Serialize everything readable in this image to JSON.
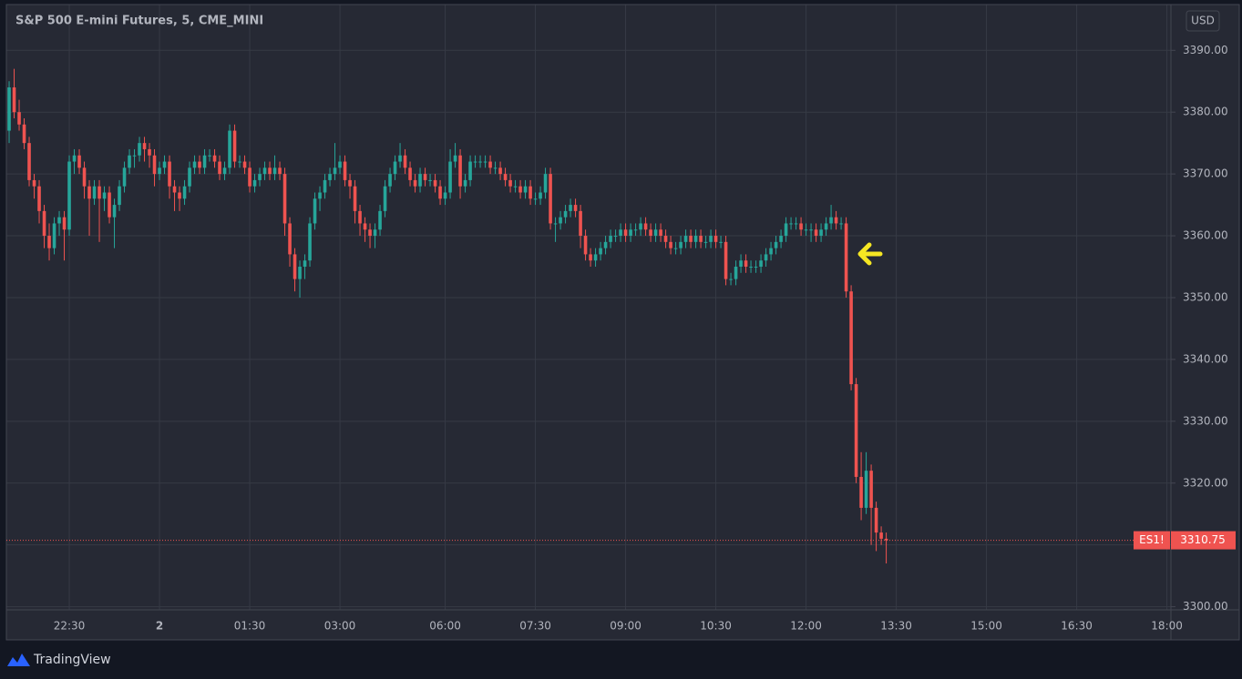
{
  "chart_data": {
    "type": "candlestick",
    "title": "S&P 500 E-mini Futures, 5, CME_MINI",
    "currency": "USD",
    "brand": "TradingView",
    "up_color": "#26a69a",
    "down_color": "#ef5350",
    "grid": true,
    "ylim": [
      3299.5,
      3397.4
    ],
    "yticks": [
      {
        "value": 3390,
        "label": "3390.00"
      },
      {
        "value": 3380,
        "label": "3380.00"
      },
      {
        "value": 3370,
        "label": "3370.00"
      },
      {
        "value": 3360,
        "label": "3360.00"
      },
      {
        "value": 3350,
        "label": "3350.00"
      },
      {
        "value": 3340,
        "label": "3340.00"
      },
      {
        "value": 3330,
        "label": "3330.00"
      },
      {
        "value": 3320,
        "label": "3320.00"
      },
      {
        "value": 3310,
        "label": "3310.00"
      },
      {
        "value": 3300,
        "label": "3300.00"
      }
    ],
    "xlim": [
      -0.55,
      231.8
    ],
    "xticks": [
      {
        "value": 12,
        "label": "22:30"
      },
      {
        "value": 30,
        "label": "2"
      },
      {
        "value": 48,
        "label": "01:30"
      },
      {
        "value": 66,
        "label": "03:00"
      },
      {
        "value": 87,
        "label": "06:00"
      },
      {
        "value": 105,
        "label": "07:30"
      },
      {
        "value": 123,
        "label": "09:00"
      },
      {
        "value": 141,
        "label": "10:30"
      },
      {
        "value": 159,
        "label": "12:00"
      },
      {
        "value": 177,
        "label": "13:30"
      },
      {
        "value": 195,
        "label": "15:00"
      },
      {
        "value": 213,
        "label": "16:30"
      },
      {
        "value": 231,
        "label": "18:00"
      }
    ],
    "last_price": {
      "label": "ES1!",
      "value": 3310.75
    },
    "candles": [
      [
        3377,
        3385,
        3375,
        3384
      ],
      [
        3384,
        3387,
        3379,
        3380
      ],
      [
        3380,
        3382,
        3377,
        3378
      ],
      [
        3378,
        3379,
        3374,
        3375
      ],
      [
        3375,
        3376,
        3368,
        3369
      ],
      [
        3369,
        3370,
        3366,
        3368
      ],
      [
        3368,
        3369,
        3362,
        3364
      ],
      [
        3364,
        3365,
        3358,
        3360
      ],
      [
        3360,
        3362,
        3356,
        3358
      ],
      [
        3358,
        3363,
        3357,
        3362
      ],
      [
        3362,
        3364,
        3360,
        3363
      ],
      [
        3363,
        3364,
        3356,
        3361
      ],
      [
        3361,
        3373,
        3360,
        3372
      ],
      [
        3372,
        3374,
        3370,
        3373
      ],
      [
        3373,
        3374,
        3370,
        3371
      ],
      [
        3371,
        3372,
        3366,
        3368
      ],
      [
        3368,
        3369,
        3360,
        3366
      ],
      [
        3366,
        3369,
        3365,
        3368
      ],
      [
        3368,
        3369,
        3359,
        3366
      ],
      [
        3366,
        3368,
        3364,
        3367
      ],
      [
        3367,
        3368,
        3362,
        3363
      ],
      [
        3363,
        3366,
        3358,
        3365
      ],
      [
        3365,
        3369,
        3364,
        3368
      ],
      [
        3368,
        3372,
        3367,
        3371
      ],
      [
        3371,
        3374,
        3370,
        3373
      ],
      [
        3373,
        3374,
        3371,
        3373
      ],
      [
        3373,
        3376,
        3372,
        3375
      ],
      [
        3375,
        3376,
        3372,
        3374
      ],
      [
        3374,
        3375,
        3371,
        3373
      ],
      [
        3373,
        3374,
        3368,
        3370
      ],
      [
        3370,
        3372,
        3369,
        3371
      ],
      [
        3371,
        3373,
        3370,
        3372
      ],
      [
        3372,
        3373,
        3366,
        3368
      ],
      [
        3368,
        3369,
        3364,
        3367
      ],
      [
        3367,
        3368,
        3364,
        3366
      ],
      [
        3366,
        3369,
        3365,
        3368
      ],
      [
        3368,
        3372,
        3367,
        3371
      ],
      [
        3371,
        3373,
        3370,
        3372
      ],
      [
        3372,
        3373,
        3370,
        3371
      ],
      [
        3371,
        3374,
        3370,
        3373
      ],
      [
        3373,
        3374,
        3372,
        3373
      ],
      [
        3373,
        3374,
        3371,
        3372
      ],
      [
        3372,
        3373,
        3369,
        3370
      ],
      [
        3370,
        3372,
        3369,
        3371
      ],
      [
        3371,
        3378,
        3370,
        3377
      ],
      [
        3377,
        3378,
        3371,
        3372
      ],
      [
        3372,
        3373,
        3371,
        3372
      ],
      [
        3372,
        3373,
        3370,
        3371
      ],
      [
        3371,
        3372,
        3367,
        3368
      ],
      [
        3368,
        3370,
        3367,
        3369
      ],
      [
        3369,
        3371,
        3368,
        3370
      ],
      [
        3370,
        3372,
        3369,
        3371
      ],
      [
        3371,
        3372,
        3369,
        3370
      ],
      [
        3370,
        3373,
        3369,
        3371
      ],
      [
        3371,
        3372,
        3369,
        3370
      ],
      [
        3370,
        3371,
        3360,
        3362
      ],
      [
        3362,
        3363,
        3355,
        3357
      ],
      [
        3357,
        3358,
        3351,
        3353
      ],
      [
        3353,
        3356,
        3350,
        3355
      ],
      [
        3355,
        3357,
        3353,
        3356
      ],
      [
        3356,
        3363,
        3355,
        3362
      ],
      [
        3362,
        3367,
        3361,
        3366
      ],
      [
        3366,
        3368,
        3364,
        3367
      ],
      [
        3367,
        3370,
        3366,
        3369
      ],
      [
        3369,
        3371,
        3368,
        3370
      ],
      [
        3370,
        3375,
        3369,
        3371
      ],
      [
        3371,
        3373,
        3370,
        3372
      ],
      [
        3372,
        3373,
        3368,
        3369
      ],
      [
        3369,
        3370,
        3366,
        3368
      ],
      [
        3368,
        3369,
        3362,
        3364
      ],
      [
        3364,
        3365,
        3360,
        3362
      ],
      [
        3362,
        3363,
        3359,
        3361
      ],
      [
        3361,
        3362,
        3358,
        3360
      ],
      [
        3360,
        3362,
        3358,
        3361
      ],
      [
        3361,
        3365,
        3360,
        3364
      ],
      [
        3364,
        3369,
        3363,
        3368
      ],
      [
        3368,
        3371,
        3367,
        3370
      ],
      [
        3370,
        3373,
        3369,
        3372
      ],
      [
        3372,
        3375,
        3371,
        3373
      ],
      [
        3373,
        3374,
        3370,
        3371
      ],
      [
        3371,
        3372,
        3368,
        3369
      ],
      [
        3369,
        3370,
        3367,
        3368
      ],
      [
        3368,
        3371,
        3367,
        3370
      ],
      [
        3370,
        3371,
        3368,
        3369
      ],
      [
        3369,
        3370,
        3368,
        3369
      ],
      [
        3369,
        3370,
        3367,
        3368
      ],
      [
        3368,
        3369,
        3365,
        3366
      ],
      [
        3366,
        3368,
        3365,
        3367
      ],
      [
        3367,
        3374,
        3366,
        3372
      ],
      [
        3372,
        3375,
        3371,
        3373
      ],
      [
        3373,
        3374,
        3366,
        3368
      ],
      [
        3368,
        3370,
        3367,
        3369
      ],
      [
        3369,
        3373,
        3368,
        3372
      ],
      [
        3372,
        3373,
        3371,
        3372
      ],
      [
        3372,
        3373,
        3371,
        3372
      ],
      [
        3372,
        3373,
        3371,
        3372
      ],
      [
        3372,
        3373,
        3370,
        3371
      ],
      [
        3371,
        3372,
        3370,
        3371
      ],
      [
        3371,
        3372,
        3369,
        3370
      ],
      [
        3370,
        3371,
        3368,
        3369
      ],
      [
        3369,
        3370,
        3367,
        3368
      ],
      [
        3368,
        3369,
        3367,
        3368
      ],
      [
        3368,
        3369,
        3366,
        3367
      ],
      [
        3367,
        3369,
        3366,
        3368
      ],
      [
        3368,
        3369,
        3365,
        3366
      ],
      [
        3366,
        3367,
        3365,
        3366
      ],
      [
        3366,
        3368,
        3365,
        3367
      ],
      [
        3367,
        3371,
        3366,
        3370
      ],
      [
        3370,
        3371,
        3361,
        3362
      ],
      [
        3362,
        3363,
        3359,
        3362
      ],
      [
        3362,
        3364,
        3361,
        3363
      ],
      [
        3363,
        3365,
        3362,
        3364
      ],
      [
        3364,
        3366,
        3363,
        3365
      ],
      [
        3365,
        3366,
        3363,
        3364
      ],
      [
        3364,
        3365,
        3358,
        3360
      ],
      [
        3360,
        3361,
        3356,
        3357
      ],
      [
        3357,
        3358,
        3355,
        3356
      ],
      [
        3356,
        3358,
        3355,
        3357
      ],
      [
        3357,
        3359,
        3356,
        3358
      ],
      [
        3358,
        3360,
        3357,
        3359
      ],
      [
        3359,
        3361,
        3358,
        3360
      ],
      [
        3360,
        3361,
        3359,
        3360
      ],
      [
        3360,
        3362,
        3359,
        3361
      ],
      [
        3361,
        3362,
        3359,
        3360
      ],
      [
        3360,
        3362,
        3359,
        3361
      ],
      [
        3361,
        3362,
        3360,
        3361
      ],
      [
        3361,
        3363,
        3360,
        3362
      ],
      [
        3362,
        3363,
        3360,
        3361
      ],
      [
        3361,
        3362,
        3359,
        3360
      ],
      [
        3360,
        3362,
        3359,
        3361
      ],
      [
        3361,
        3362,
        3359,
        3360
      ],
      [
        3360,
        3361,
        3358,
        3359
      ],
      [
        3359,
        3360,
        3357,
        3358
      ],
      [
        3358,
        3359,
        3357,
        3358
      ],
      [
        3358,
        3360,
        3357,
        3359
      ],
      [
        3359,
        3361,
        3358,
        3360
      ],
      [
        3360,
        3361,
        3358,
        3359
      ],
      [
        3359,
        3361,
        3358,
        3360
      ],
      [
        3360,
        3361,
        3358,
        3359
      ],
      [
        3359,
        3360,
        3358,
        3359
      ],
      [
        3359,
        3361,
        3358,
        3360
      ],
      [
        3360,
        3361,
        3358,
        3359
      ],
      [
        3359,
        3360,
        3358,
        3359
      ],
      [
        3359,
        3360,
        3352,
        3353
      ],
      [
        3353,
        3354,
        3352,
        3353
      ],
      [
        3353,
        3356,
        3352,
        3355
      ],
      [
        3355,
        3357,
        3354,
        3356
      ],
      [
        3356,
        3357,
        3354,
        3355
      ],
      [
        3355,
        3356,
        3354,
        3355
      ],
      [
        3355,
        3356,
        3354,
        3355
      ],
      [
        3355,
        3357,
        3354,
        3356
      ],
      [
        3356,
        3358,
        3355,
        3357
      ],
      [
        3357,
        3359,
        3356,
        3358
      ],
      [
        3358,
        3360,
        3357,
        3359
      ],
      [
        3359,
        3361,
        3358,
        3360
      ],
      [
        3360,
        3363,
        3359,
        3362
      ],
      [
        3362,
        3363,
        3361,
        3362
      ],
      [
        3362,
        3363,
        3361,
        3362
      ],
      [
        3362,
        3363,
        3360,
        3361
      ],
      [
        3361,
        3362,
        3360,
        3361
      ],
      [
        3361,
        3362,
        3359,
        3361
      ],
      [
        3361,
        3362,
        3359,
        3360
      ],
      [
        3360,
        3362,
        3359,
        3361
      ],
      [
        3361,
        3363,
        3360,
        3362
      ],
      [
        3362,
        3365,
        3361,
        3363
      ],
      [
        3363,
        3364,
        3361,
        3362
      ],
      [
        3362,
        3363,
        3361,
        3362
      ],
      [
        3362,
        3363,
        3350,
        3351
      ],
      [
        3351,
        3352,
        3335,
        3336
      ],
      [
        3336,
        3337,
        3320,
        3321
      ],
      [
        3321,
        3325,
        3314,
        3316
      ],
      [
        3316,
        3325,
        3315,
        3322
      ],
      [
        3322,
        3323,
        3310,
        3316
      ],
      [
        3316,
        3317,
        3309,
        3312
      ],
      [
        3312,
        3313,
        3310,
        3311
      ],
      [
        3311,
        3312,
        3307,
        3310.75
      ]
    ]
  }
}
